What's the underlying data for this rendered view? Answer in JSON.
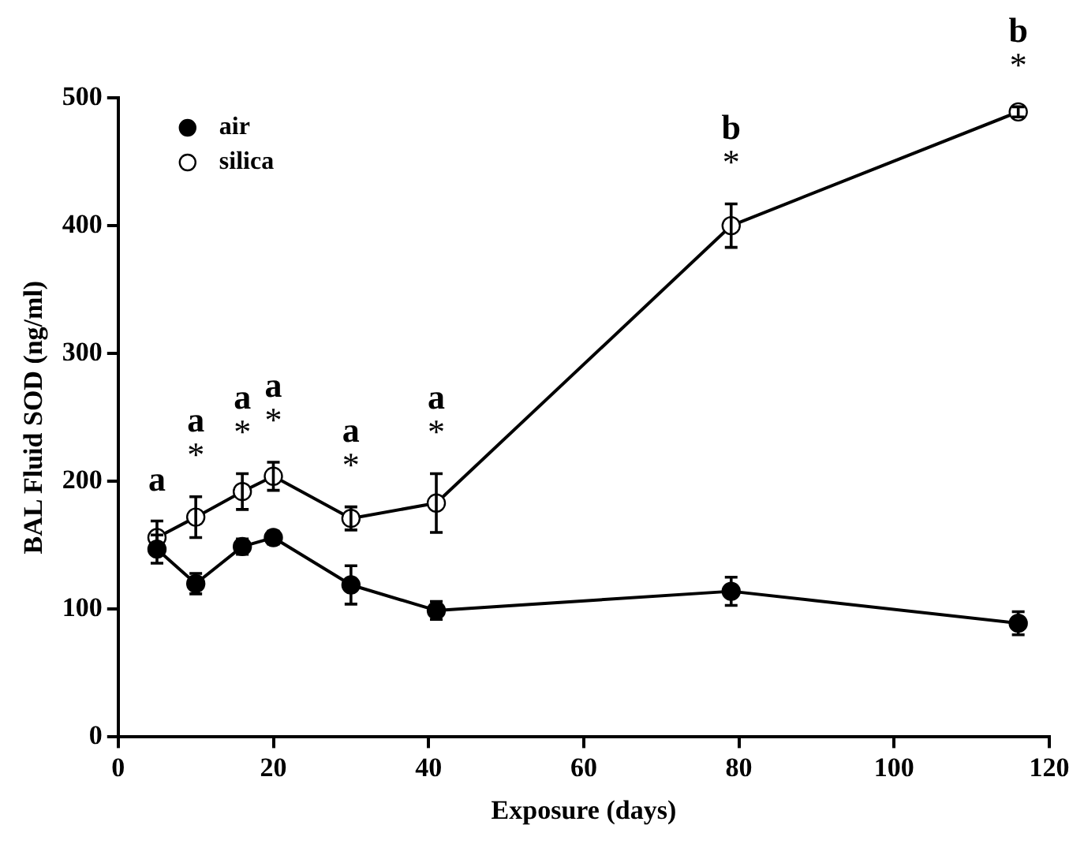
{
  "chart_data": {
    "type": "line",
    "xlabel": "Exposure (days)",
    "ylabel": "BAL Fluid SOD (ng/ml)",
    "x": [
      5,
      10,
      16,
      20,
      30,
      41,
      79,
      116
    ],
    "series": [
      {
        "name": "air",
        "color": "#000000",
        "values": [
          147,
          120,
          149,
          156,
          119,
          99,
          114,
          89
        ],
        "errors": [
          11,
          8,
          6,
          5,
          15,
          7,
          11,
          9
        ]
      },
      {
        "name": "silica",
        "color": "#ffffff",
        "values": [
          156,
          172,
          192,
          204,
          171,
          183,
          400,
          489
        ],
        "errors": [
          13,
          16,
          14,
          11,
          9,
          23,
          17,
          4
        ]
      }
    ],
    "xlim": [
      0,
      120
    ],
    "xticks": [
      0,
      20,
      40,
      60,
      80,
      100,
      120
    ],
    "ylim": [
      0,
      500
    ],
    "yticks": [
      0,
      100,
      200,
      300,
      400,
      500
    ],
    "grid": false,
    "legend": "top left",
    "marker": "circle",
    "line_style": "solid",
    "annotations": [
      {
        "text": "a",
        "x": 5,
        "y": 156
      },
      {
        "text": "*",
        "x": 10,
        "y": 172
      },
      {
        "text": "a",
        "x": 10,
        "y": 172
      },
      {
        "text": "*",
        "x": 16,
        "y": 192
      },
      {
        "text": "a",
        "x": 16,
        "y": 192
      },
      {
        "text": "*",
        "x": 20,
        "y": 204
      },
      {
        "text": "a",
        "x": 20,
        "y": 204
      },
      {
        "text": "*",
        "x": 30,
        "y": 171
      },
      {
        "text": "a",
        "x": 30,
        "y": 171
      },
      {
        "text": "*",
        "x": 41,
        "y": 183
      },
      {
        "text": "a",
        "x": 41,
        "y": 183
      },
      {
        "text": "*",
        "x": 79,
        "y": 400
      },
      {
        "text": "b",
        "x": 79,
        "y": 400
      },
      {
        "text": "*",
        "x": 116,
        "y": 489
      },
      {
        "text": "b",
        "x": 116,
        "y": 489
      }
    ]
  }
}
